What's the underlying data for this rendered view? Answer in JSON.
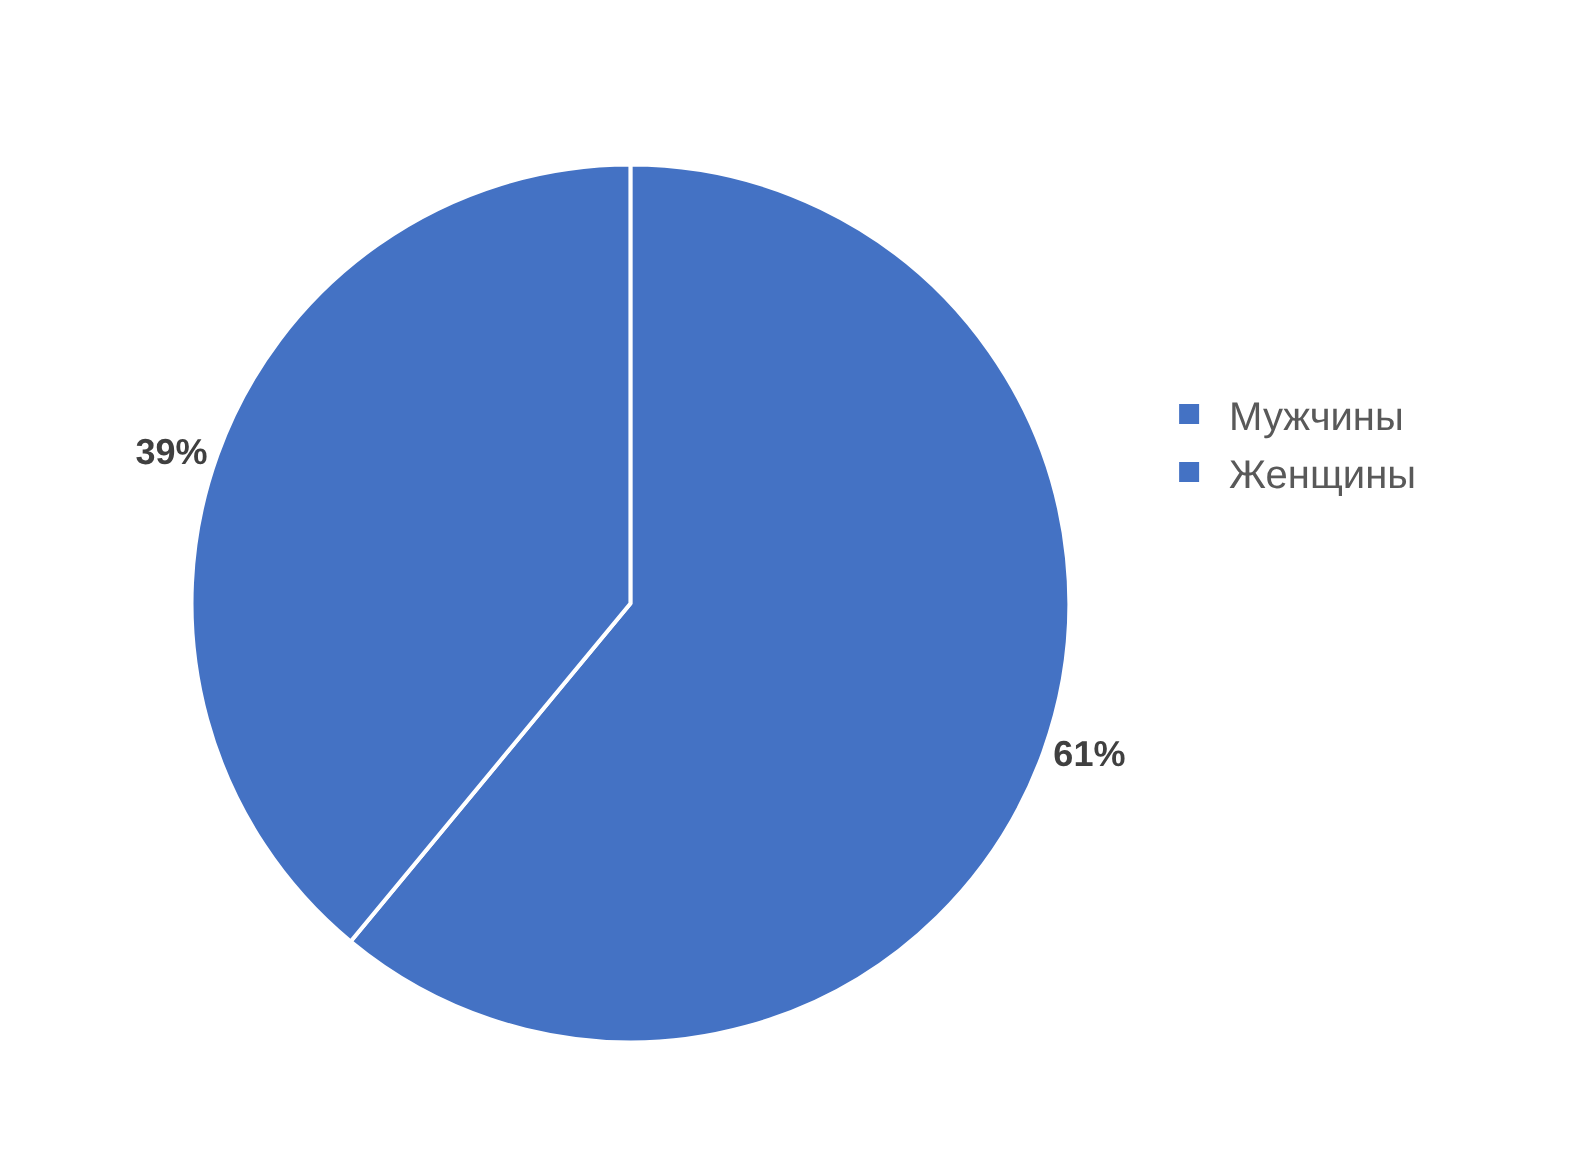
{
  "chart_data": {
    "type": "pie",
    "categories": [
      "Мужчины",
      "Женщины"
    ],
    "values": [
      61,
      39
    ],
    "colors": [
      "#4472c4",
      "#4472c4"
    ],
    "value_labels": [
      "61%",
      "39%"
    ],
    "legend": "right"
  }
}
